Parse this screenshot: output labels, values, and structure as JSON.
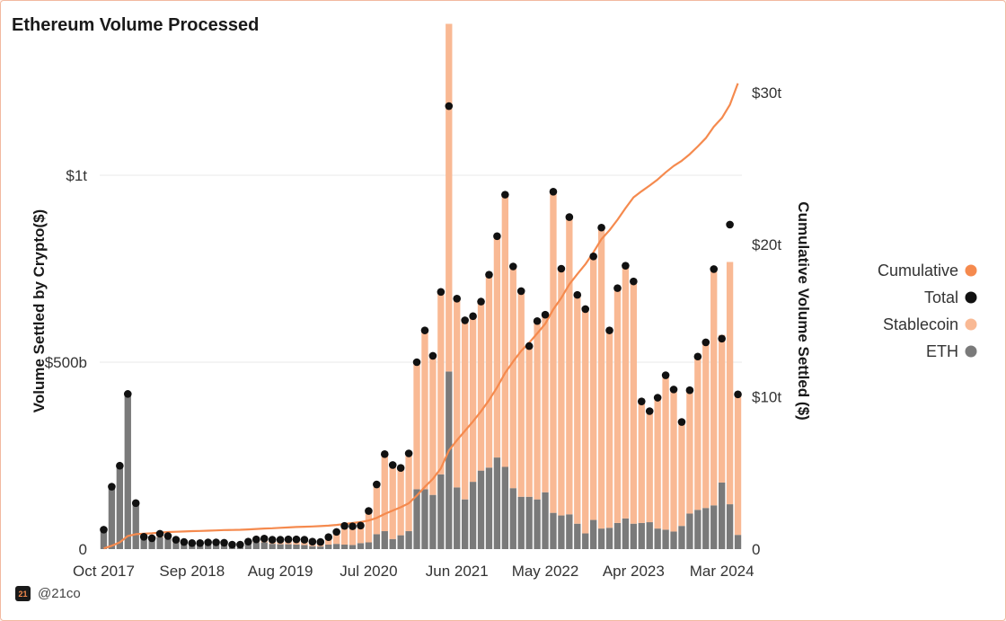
{
  "title": "Ethereum Volume Processed",
  "footer": {
    "handle": "@21co",
    "icon_text": "21"
  },
  "colors": {
    "eth": "#7a7a7a",
    "stablecoin": "#f9b994",
    "total": "#111111",
    "cumulative": "#f58a4e",
    "grid": "#e9e9e9"
  },
  "chart_data": {
    "type": "bar",
    "title": "Ethereum Volume Processed",
    "ylabel": "Volume Settled by Crypto($)",
    "y2label": "Cumulative Volume Settled ($)",
    "ylim": [
      0,
      1250
    ],
    "y2lim": [
      0,
      30.7
    ],
    "y_unit": "billions USD",
    "y2_unit": "trillions USD",
    "yticks": [
      0,
      500,
      1000
    ],
    "ytick_labels": [
      "0",
      "$500b",
      "$1t"
    ],
    "y2ticks": [
      0,
      10,
      20,
      30
    ],
    "y2tick_labels": [
      "0",
      "$10t",
      "$20t",
      "$30t"
    ],
    "xtick_labels": [
      "Oct 2017",
      "Sep 2018",
      "Aug 2019",
      "Jul 2020",
      "Jun 2021",
      "May 2022",
      "Apr 2023",
      "Mar 2024"
    ],
    "xtick_index": [
      0,
      11,
      22,
      33,
      44,
      55,
      66,
      77
    ],
    "legend": [
      {
        "key": "cumulative",
        "label": "Cumulative"
      },
      {
        "key": "total",
        "label": "Total"
      },
      {
        "key": "stablecoin",
        "label": "Stablecoin"
      },
      {
        "key": "eth",
        "label": "ETH"
      }
    ],
    "legend_position": "right",
    "series": [
      {
        "name": "ETH",
        "stack": "bar",
        "values": [
          50,
          165,
          220,
          410,
          118,
          28,
          25,
          32,
          28,
          18,
          13,
          11,
          11,
          13,
          13,
          12,
          8,
          8,
          14,
          18,
          18,
          14,
          13,
          13,
          12,
          11,
          8,
          7,
          12,
          14,
          12,
          11,
          16,
          18,
          40,
          48,
          27,
          37,
          48,
          160,
          160,
          145,
          200,
          475,
          165,
          133,
          180,
          210,
          218,
          245,
          220,
          163,
          140,
          140,
          133,
          152,
          97,
          90,
          93,
          68,
          42,
          78,
          55,
          57,
          70,
          82,
          68,
          70,
          72,
          55,
          52,
          47,
          62,
          95,
          105,
          110,
          117,
          178,
          120,
          38
        ]
      },
      {
        "name": "Stablecoin",
        "stack": "bar",
        "values": [
          2,
          2,
          3,
          5,
          5,
          5,
          4,
          9,
          7,
          7,
          6,
          5,
          5,
          5,
          5,
          5,
          4,
          4,
          6,
          8,
          10,
          11,
          12,
          13,
          14,
          14,
          12,
          12,
          20,
          32,
          50,
          50,
          47,
          84,
          133,
          206,
          198,
          180,
          208,
          340,
          425,
          372,
          488,
          930,
          505,
          479,
          443,
          452,
          516,
          592,
          728,
          593,
          550,
          403,
          477,
          475,
          859,
          660,
          795,
          612,
          600,
          705,
          805,
          528,
          628,
          676,
          648,
          325,
          297,
          350,
          413,
          380,
          278,
          330,
          410,
          443,
          632,
          395,
          648,
          376
        ]
      },
      {
        "name": "Total",
        "type": "dots",
        "values": [
          52,
          167,
          223,
          415,
          123,
          33,
          29,
          41,
          35,
          25,
          19,
          16,
          16,
          18,
          18,
          17,
          12,
          12,
          20,
          26,
          28,
          25,
          25,
          26,
          26,
          25,
          20,
          19,
          32,
          46,
          62,
          61,
          63,
          102,
          173,
          254,
          225,
          217,
          256,
          500,
          585,
          517,
          688,
          1185,
          670,
          612,
          623,
          662,
          734,
          837,
          948,
          756,
          690,
          543,
          610,
          627,
          956,
          750,
          888,
          680,
          642,
          783,
          860,
          585,
          698,
          758,
          716,
          395,
          369,
          405,
          465,
          427,
          340,
          425,
          515,
          553,
          749,
          563,
          868,
          414
        ]
      },
      {
        "name": "Cumulative",
        "type": "line",
        "axis": "right",
        "values": [
          0.05,
          0.22,
          0.44,
          0.86,
          0.98,
          1.01,
          1.04,
          1.08,
          1.12,
          1.14,
          1.16,
          1.18,
          1.19,
          1.21,
          1.23,
          1.25,
          1.26,
          1.27,
          1.29,
          1.32,
          1.35,
          1.37,
          1.4,
          1.42,
          1.45,
          1.47,
          1.49,
          1.51,
          1.54,
          1.59,
          1.65,
          1.71,
          1.78,
          1.88,
          2.05,
          2.31,
          2.53,
          2.75,
          3.01,
          3.51,
          4.09,
          4.61,
          5.3,
          6.48,
          7.15,
          7.77,
          8.39,
          9.05,
          9.79,
          10.62,
          11.57,
          12.33,
          13.02,
          13.56,
          14.17,
          14.8,
          15.75,
          16.5,
          17.39,
          18.07,
          18.71,
          19.5,
          20.36,
          20.94,
          21.64,
          22.4,
          23.11,
          23.51,
          23.88,
          24.28,
          24.75,
          25.17,
          25.51,
          25.94,
          26.45,
          27.0,
          27.75,
          28.32,
          29.19,
          30.6
        ]
      }
    ]
  }
}
